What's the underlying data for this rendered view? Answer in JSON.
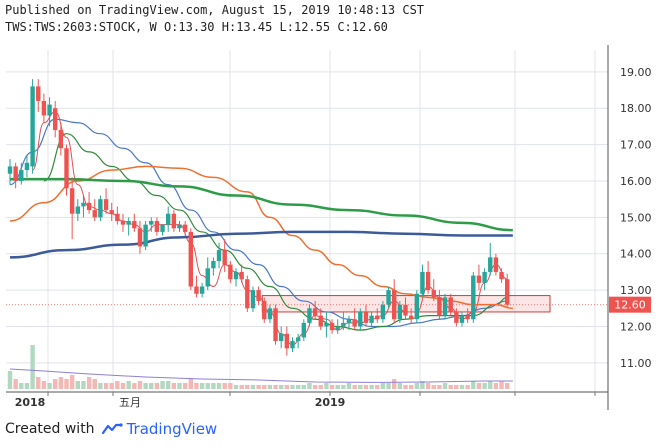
{
  "header": {
    "line1": "Published on TradingView.com, August 15, 2019 10:48:13 CST",
    "line2": "TWS:TWS:2603:STOCK, W O:13.30 H:13.45 L:12.55 C:12.60"
  },
  "footer": {
    "created_with": "Created with",
    "brand": "TradingView",
    "logo_icon": "tradingview-logo-icon"
  },
  "colors": {
    "up": "#26a69a",
    "down": "#ef5350",
    "ma_blue": "#4a78c9",
    "ma_navy": "#3d5a99",
    "ma_green_thick": "#2e9b48",
    "ma_green_thin": "#2f8a3a",
    "ma_orange": "#f07030",
    "ma_red": "#e0505a",
    "vol_up": "#b2d8c2",
    "vol_down": "#f4b7b4",
    "price_badge": "#ef5350",
    "grid": "#e0e3eb"
  },
  "chart_data": {
    "type": "candlestick",
    "symbol": "TWS:TWS:2603:STOCK",
    "interval": "W",
    "last": {
      "open": 13.3,
      "high": 13.45,
      "low": 12.55,
      "close": 12.6
    },
    "price_label": "12.60",
    "yaxis": {
      "ticks": [
        "19.00",
        "18.00",
        "17.00",
        "16.00",
        "15.00",
        "14.00",
        "13.00",
        "12.00",
        "11.00"
      ],
      "range": [
        10.2,
        19.6
      ]
    },
    "xaxis": {
      "labels": [
        "2018",
        "五月",
        "2019"
      ]
    },
    "candles": [
      [
        16.2,
        16.6,
        15.9,
        16.4
      ],
      [
        16.4,
        16.5,
        15.8,
        16.0
      ],
      [
        16.0,
        16.5,
        15.9,
        16.3
      ],
      [
        16.3,
        16.7,
        16.1,
        16.5
      ],
      [
        16.4,
        18.8,
        16.2,
        18.6
      ],
      [
        18.6,
        18.8,
        17.9,
        18.2
      ],
      [
        18.2,
        18.4,
        17.6,
        17.8
      ],
      [
        17.8,
        18.3,
        17.5,
        18.1
      ],
      [
        18.0,
        18.2,
        17.2,
        17.4
      ],
      [
        17.4,
        17.6,
        16.7,
        16.9
      ],
      [
        16.9,
        17.0,
        15.6,
        15.8
      ],
      [
        15.8,
        16.1,
        14.4,
        15.1
      ],
      [
        15.1,
        15.5,
        14.9,
        15.3
      ],
      [
        15.3,
        15.6,
        15.0,
        15.4
      ],
      [
        15.4,
        15.7,
        15.1,
        15.2
      ],
      [
        15.2,
        15.5,
        14.9,
        15.0
      ],
      [
        15.0,
        15.6,
        14.9,
        15.5
      ],
      [
        15.5,
        15.8,
        15.1,
        15.2
      ],
      [
        15.2,
        15.4,
        14.9,
        15.1
      ],
      [
        15.1,
        15.3,
        14.8,
        14.9
      ],
      [
        14.9,
        15.1,
        14.6,
        14.8
      ],
      [
        14.8,
        15.0,
        14.5,
        14.9
      ],
      [
        14.9,
        15.1,
        14.6,
        14.7
      ],
      [
        14.7,
        14.9,
        14.0,
        14.2
      ],
      [
        14.2,
        14.9,
        14.1,
        14.8
      ],
      [
        14.8,
        15.0,
        14.6,
        14.9
      ],
      [
        14.9,
        15.0,
        14.5,
        14.6
      ],
      [
        14.6,
        14.8,
        14.5,
        14.8
      ],
      [
        14.8,
        15.3,
        14.6,
        15.1
      ],
      [
        15.1,
        15.2,
        14.6,
        14.7
      ],
      [
        14.7,
        14.9,
        14.6,
        14.8
      ],
      [
        14.8,
        14.9,
        14.5,
        14.6
      ],
      [
        14.6,
        14.7,
        13.0,
        13.1
      ],
      [
        13.1,
        13.4,
        12.8,
        12.9
      ],
      [
        12.9,
        13.2,
        12.8,
        13.1
      ],
      [
        13.1,
        13.9,
        13.0,
        13.6
      ],
      [
        13.6,
        13.9,
        13.4,
        13.8
      ],
      [
        13.8,
        14.3,
        13.6,
        14.1
      ],
      [
        14.1,
        14.4,
        13.5,
        13.7
      ],
      [
        13.7,
        13.8,
        13.2,
        13.3
      ],
      [
        13.3,
        13.6,
        13.1,
        13.5
      ],
      [
        13.5,
        13.7,
        13.2,
        13.3
      ],
      [
        13.3,
        13.4,
        12.4,
        12.5
      ],
      [
        12.5,
        13.1,
        12.4,
        13.0
      ],
      [
        13.0,
        13.1,
        12.6,
        12.7
      ],
      [
        12.7,
        12.8,
        12.1,
        12.2
      ],
      [
        12.2,
        12.6,
        12.1,
        12.5
      ],
      [
        12.5,
        12.6,
        11.5,
        11.6
      ],
      [
        11.6,
        12.0,
        11.4,
        11.8
      ],
      [
        11.8,
        12.0,
        11.2,
        11.4
      ],
      [
        11.4,
        11.7,
        11.3,
        11.6
      ],
      [
        11.6,
        11.8,
        11.4,
        11.7
      ],
      [
        11.7,
        12.2,
        11.6,
        12.1
      ],
      [
        12.1,
        12.6,
        12.0,
        12.5
      ],
      [
        12.5,
        12.7,
        12.2,
        12.3
      ],
      [
        12.3,
        12.5,
        11.9,
        12.0
      ],
      [
        12.0,
        12.4,
        11.7,
        12.1
      ],
      [
        12.1,
        12.2,
        11.8,
        11.9
      ],
      [
        11.9,
        12.2,
        11.8,
        12.0
      ],
      [
        12.0,
        12.4,
        11.9,
        12.1
      ],
      [
        12.1,
        12.3,
        11.9,
        12.2
      ],
      [
        12.2,
        12.5,
        11.9,
        12.0
      ],
      [
        12.0,
        12.5,
        11.9,
        12.4
      ],
      [
        12.4,
        12.6,
        12.0,
        12.1
      ],
      [
        12.1,
        12.4,
        12.0,
        12.3
      ],
      [
        12.3,
        12.5,
        12.1,
        12.2
      ],
      [
        12.2,
        12.7,
        12.1,
        12.6
      ],
      [
        12.6,
        13.1,
        12.5,
        13.0
      ],
      [
        13.0,
        13.3,
        12.1,
        12.2
      ],
      [
        12.2,
        12.7,
        12.1,
        12.6
      ],
      [
        12.6,
        12.8,
        12.2,
        12.3
      ],
      [
        12.3,
        12.5,
        12.1,
        12.2
      ],
      [
        12.2,
        13.0,
        12.1,
        12.9
      ],
      [
        12.9,
        13.7,
        12.8,
        13.5
      ],
      [
        13.5,
        13.8,
        12.9,
        13.0
      ],
      [
        13.0,
        13.3,
        12.7,
        12.8
      ],
      [
        12.8,
        13.0,
        12.2,
        12.3
      ],
      [
        12.3,
        12.9,
        12.2,
        12.8
      ],
      [
        12.8,
        12.9,
        12.3,
        12.4
      ],
      [
        12.4,
        12.5,
        12.0,
        12.1
      ],
      [
        12.1,
        12.4,
        12.0,
        12.3
      ],
      [
        12.3,
        12.5,
        12.1,
        12.2
      ],
      [
        12.2,
        13.5,
        12.1,
        13.4
      ],
      [
        13.4,
        13.7,
        13.0,
        13.2
      ],
      [
        13.2,
        13.6,
        13.0,
        13.5
      ],
      [
        13.5,
        14.3,
        13.4,
        13.9
      ],
      [
        13.9,
        14.0,
        13.4,
        13.5
      ],
      [
        13.5,
        13.6,
        13.2,
        13.3
      ],
      [
        13.3,
        13.45,
        12.55,
        12.6
      ]
    ],
    "volumes": [
      0.9,
      0.5,
      0.3,
      0.3,
      2.2,
      0.6,
      0.4,
      0.3,
      0.5,
      0.6,
      0.5,
      0.7,
      0.4,
      0.4,
      0.6,
      0.5,
      0.3,
      0.3,
      0.3,
      0.4,
      0.3,
      0.4,
      0.3,
      0.4,
      0.3,
      0.3,
      0.3,
      0.4,
      0.4,
      0.3,
      0.3,
      0.3,
      0.5,
      0.3,
      0.3,
      0.3,
      0.3,
      0.3,
      0.3,
      0.3,
      0.2,
      0.2,
      0.2,
      0.2,
      0.2,
      0.2,
      0.2,
      0.2,
      0.2,
      0.2,
      0.2,
      0.2,
      0.2,
      0.3,
      0.2,
      0.2,
      0.3,
      0.2,
      0.2,
      0.2,
      0.3,
      0.2,
      0.2,
      0.2,
      0.2,
      0.2,
      0.3,
      0.3,
      0.5,
      0.3,
      0.2,
      0.2,
      0.3,
      0.4,
      0.3,
      0.2,
      0.2,
      0.3,
      0.2,
      0.2,
      0.2,
      0.2,
      0.4,
      0.3,
      0.3,
      0.4,
      0.3,
      0.4,
      0.3
    ],
    "moving_averages": [
      {
        "color_key": "ma_blue",
        "width": 1.2,
        "points": [
          [
            0,
            15.9
          ],
          [
            4,
            16.8
          ],
          [
            8,
            17.7
          ],
          [
            12,
            17.6
          ],
          [
            16,
            17.3
          ],
          [
            20,
            16.9
          ],
          [
            24,
            16.5
          ],
          [
            28,
            15.9
          ],
          [
            32,
            15.2
          ],
          [
            36,
            14.6
          ],
          [
            40,
            14.1
          ],
          [
            44,
            13.7
          ],
          [
            48,
            13.1
          ],
          [
            52,
            12.7
          ],
          [
            56,
            12.4
          ],
          [
            60,
            12.2
          ],
          [
            64,
            12.0
          ],
          [
            68,
            12.0
          ],
          [
            72,
            12.1
          ],
          [
            76,
            12.2
          ],
          [
            80,
            12.3
          ],
          [
            84,
            12.5
          ],
          [
            88,
            12.7
          ]
        ]
      },
      {
        "color_key": "ma_green_thin",
        "width": 1.2,
        "points": [
          [
            6,
            16.0
          ],
          [
            10,
            17.3
          ],
          [
            14,
            16.8
          ],
          [
            18,
            16.4
          ],
          [
            22,
            16.0
          ],
          [
            26,
            15.6
          ],
          [
            30,
            15.2
          ],
          [
            34,
            14.6
          ],
          [
            38,
            14.1
          ],
          [
            42,
            13.6
          ],
          [
            46,
            13.1
          ],
          [
            50,
            12.5
          ],
          [
            54,
            12.2
          ],
          [
            58,
            12.0
          ],
          [
            62,
            11.9
          ],
          [
            66,
            12.0
          ],
          [
            70,
            12.2
          ],
          [
            74,
            12.3
          ],
          [
            78,
            12.3
          ],
          [
            82,
            12.3
          ],
          [
            86,
            12.6
          ],
          [
            88,
            12.8
          ]
        ]
      },
      {
        "color_key": "ma_red",
        "width": 1.0,
        "points": [
          [
            4,
            16.3
          ],
          [
            6,
            17.6
          ],
          [
            8,
            17.9
          ],
          [
            10,
            17.2
          ],
          [
            12,
            15.9
          ],
          [
            14,
            15.3
          ],
          [
            16,
            15.2
          ],
          [
            18,
            15.1
          ],
          [
            20,
            14.9
          ],
          [
            22,
            14.8
          ],
          [
            24,
            14.6
          ],
          [
            26,
            14.8
          ],
          [
            28,
            14.8
          ],
          [
            30,
            14.8
          ],
          [
            32,
            14.3
          ],
          [
            34,
            13.4
          ],
          [
            36,
            13.1
          ],
          [
            38,
            13.7
          ],
          [
            40,
            13.5
          ],
          [
            42,
            13.0
          ],
          [
            44,
            12.8
          ],
          [
            46,
            12.4
          ],
          [
            48,
            11.8
          ],
          [
            50,
            11.5
          ],
          [
            52,
            11.8
          ],
          [
            54,
            12.3
          ],
          [
            56,
            12.2
          ],
          [
            58,
            11.9
          ],
          [
            60,
            12.1
          ],
          [
            62,
            12.1
          ],
          [
            64,
            12.2
          ],
          [
            66,
            12.3
          ],
          [
            68,
            12.7
          ],
          [
            70,
            12.4
          ],
          [
            72,
            12.4
          ],
          [
            74,
            13.1
          ],
          [
            76,
            12.8
          ],
          [
            78,
            12.5
          ],
          [
            80,
            12.2
          ],
          [
            82,
            12.4
          ],
          [
            84,
            13.2
          ],
          [
            86,
            13.7
          ],
          [
            88,
            13.3
          ]
        ]
      },
      {
        "color_key": "ma_orange",
        "width": 1.5,
        "points": [
          [
            0,
            14.9
          ],
          [
            6,
            15.4
          ],
          [
            12,
            16.0
          ],
          [
            18,
            16.3
          ],
          [
            24,
            16.4
          ],
          [
            30,
            16.35
          ],
          [
            36,
            16.1
          ],
          [
            42,
            15.7
          ],
          [
            46,
            15.0
          ],
          [
            50,
            14.5
          ],
          [
            54,
            14.1
          ],
          [
            58,
            13.7
          ],
          [
            62,
            13.4
          ],
          [
            66,
            13.1
          ],
          [
            70,
            12.9
          ],
          [
            74,
            12.8
          ],
          [
            78,
            12.7
          ],
          [
            82,
            12.6
          ],
          [
            86,
            12.6
          ],
          [
            89,
            12.5
          ]
        ]
      },
      {
        "color_key": "ma_green_thick",
        "width": 2.5,
        "points": [
          [
            0,
            16.05
          ],
          [
            10,
            16.05
          ],
          [
            20,
            16.0
          ],
          [
            30,
            15.85
          ],
          [
            40,
            15.6
          ],
          [
            50,
            15.35
          ],
          [
            60,
            15.2
          ],
          [
            70,
            15.05
          ],
          [
            80,
            14.85
          ],
          [
            89,
            14.65
          ]
        ]
      },
      {
        "color_key": "ma_navy",
        "width": 2.5,
        "points": [
          [
            0,
            13.9
          ],
          [
            10,
            14.1
          ],
          [
            20,
            14.25
          ],
          [
            30,
            14.45
          ],
          [
            40,
            14.55
          ],
          [
            50,
            14.6
          ],
          [
            60,
            14.6
          ],
          [
            70,
            14.55
          ],
          [
            80,
            14.5
          ],
          [
            89,
            14.5
          ]
        ]
      }
    ],
    "volume_ma": [
      [
        0,
        1.0
      ],
      [
        6,
        0.9
      ],
      [
        14,
        0.75
      ],
      [
        24,
        0.6
      ],
      [
        34,
        0.5
      ],
      [
        44,
        0.45
      ],
      [
        54,
        0.35
      ],
      [
        64,
        0.33
      ],
      [
        74,
        0.35
      ],
      [
        84,
        0.4
      ],
      [
        89,
        0.4
      ]
    ],
    "range_box": {
      "x_from": 45,
      "x_to": 100,
      "y_from": 12.4,
      "y_to": 12.85
    }
  }
}
